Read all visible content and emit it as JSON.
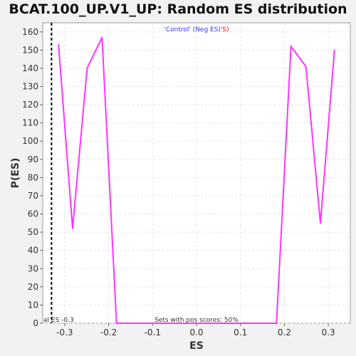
{
  "chart_data": {
    "type": "line",
    "title": "BCAT.100_UP.V1_UP: Random ES distribution",
    "xlabel": "ES",
    "ylabel": "P(ES)",
    "xlim": [
      -0.35,
      0.35
    ],
    "ylim": [
      0,
      165
    ],
    "x_ticks": [
      "-0.3",
      "-0.2",
      "-0.1",
      "0.0",
      "0.1",
      "0.2",
      "0.3"
    ],
    "y_ticks": [
      "0",
      "10",
      "20",
      "30",
      "40",
      "50",
      "60",
      "70",
      "80",
      "90",
      "100",
      "110",
      "120",
      "130",
      "140",
      "150",
      "160"
    ],
    "grid": true,
    "series": [
      {
        "color": "#ff33ff",
        "x": [
          -0.314,
          -0.282,
          -0.249,
          -0.215,
          -0.182,
          0.182,
          0.215,
          0.249,
          0.282,
          0.314
        ],
        "y": [
          153,
          52,
          140,
          157,
          0,
          0,
          152,
          141,
          55,
          150
        ]
      }
    ],
    "observed_es": {
      "x": -0.33,
      "label": "al ES -0.3",
      "color": "#000000"
    },
    "legend": {
      "control_text": "'Control' (Neg ES)",
      "control_color": "#3333ff",
      "overlap_text": "'S)",
      "overlap_color": "#ff0000"
    },
    "annotation": "Sets with pos scores: 50%"
  }
}
